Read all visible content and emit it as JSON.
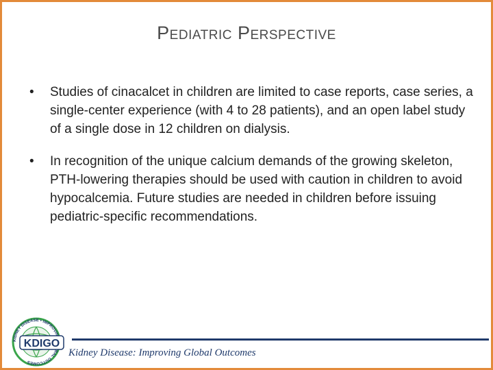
{
  "slide": {
    "title": "Pediatric Perspective",
    "bullets": [
      {
        "marker": "•",
        "text": "Studies of cinacalcet in children are limited to case reports, case series, a single-center experience (with 4 to 28 patients), and an open label study of a single dose in 12 children on dialysis."
      },
      {
        "marker": "•",
        "text": "In recognition of the unique calcium demands of the growing skeleton, PTH-lowering therapies should be used with caution in children to avoid hypocalcemia. Future studies are needed in children before issuing pediatric-specific recommendations."
      }
    ]
  },
  "footer": {
    "tagline": "Kidney Disease: Improving Global Outcomes",
    "logo": {
      "wordmark": "KDIGO",
      "ring_text": "KIDNEY DISEASE • IMPROVING GLOBAL OUTCOMES",
      "colors": {
        "green": "#3aa54b",
        "blue": "#1f3a6b"
      }
    }
  },
  "theme": {
    "border": "#e38a3a",
    "footer_blue": "#1f3a6b"
  }
}
